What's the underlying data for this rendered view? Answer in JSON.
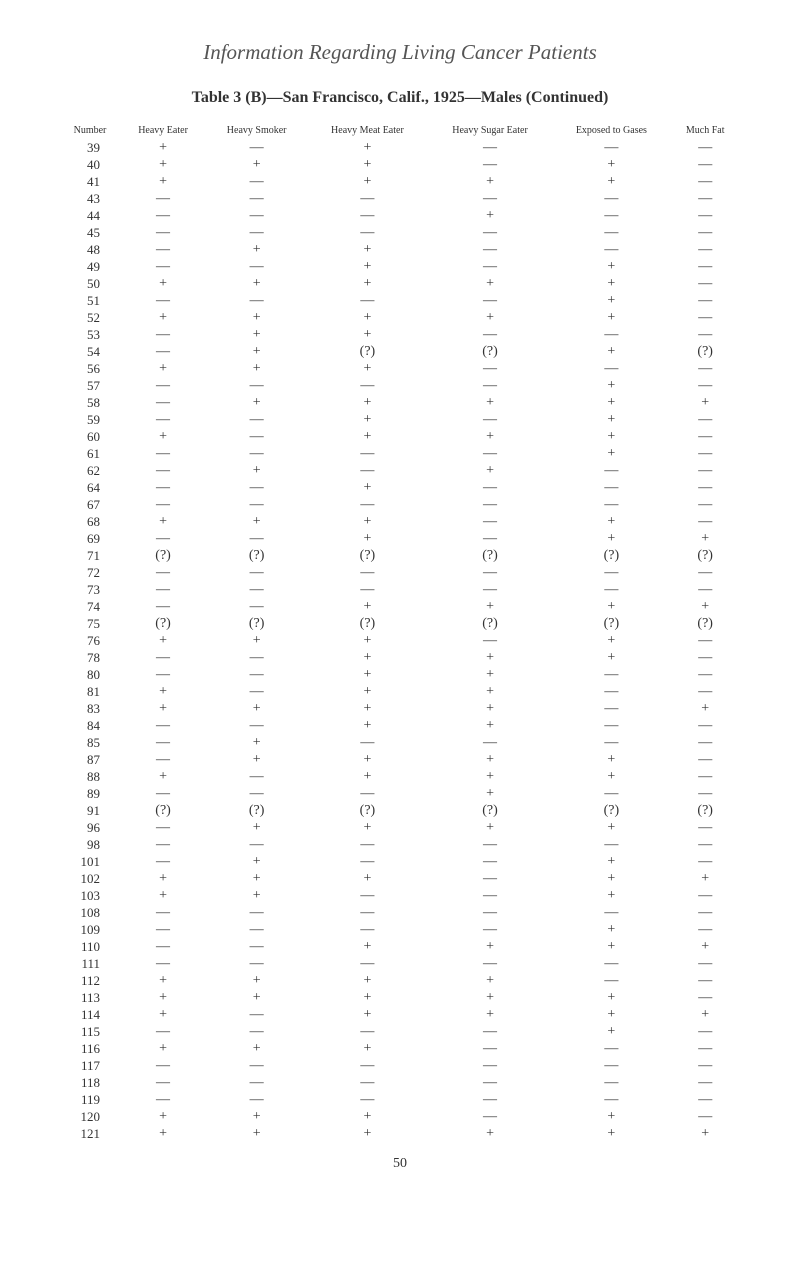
{
  "title": "Information Regarding Living Cancer Patients",
  "subtitle": "Table 3 (B)—San Francisco, Calif., 1925—Males (Continued)",
  "headers": [
    "Number",
    "Heavy Eater",
    "Heavy Smoker",
    "Heavy Meat Eater",
    "Heavy Sugar Eater",
    "Exposed to Gases",
    "Much Fat"
  ],
  "rows": [
    {
      "n": "39",
      "c": [
        "+",
        "—",
        "+",
        "—",
        "—",
        "—"
      ]
    },
    {
      "n": "40",
      "c": [
        "+",
        "+",
        "+",
        "—",
        "+",
        "—"
      ]
    },
    {
      "n": "41",
      "c": [
        "+",
        "—",
        "+",
        "+",
        "+",
        "—"
      ]
    },
    {
      "n": "43",
      "c": [
        "—",
        "—",
        "—",
        "—",
        "—",
        "—"
      ]
    },
    {
      "n": "44",
      "c": [
        "—",
        "—",
        "—",
        "+",
        "—",
        "—"
      ]
    },
    {
      "n": "45",
      "c": [
        "—",
        "—",
        "—",
        "—",
        "—",
        "—"
      ]
    },
    {
      "n": "48",
      "c": [
        "—",
        "+",
        "+",
        "—",
        "—",
        "—"
      ]
    },
    {
      "n": "49",
      "c": [
        "—",
        "—",
        "+",
        "—",
        "+",
        "—"
      ]
    },
    {
      "n": "50",
      "c": [
        "+",
        "+",
        "+",
        "+",
        "+",
        "—"
      ]
    },
    {
      "n": "51",
      "c": [
        "—",
        "—",
        "—",
        "—",
        "+",
        "—"
      ]
    },
    {
      "n": "52",
      "c": [
        "+",
        "+",
        "+",
        "+",
        "+",
        "—"
      ]
    },
    {
      "n": "53",
      "c": [
        "—",
        "+",
        "+",
        "—",
        "—",
        "—"
      ]
    },
    {
      "n": "54",
      "c": [
        "—",
        "+",
        "(?)",
        "(?)",
        "+",
        "(?)"
      ]
    },
    {
      "n": "56",
      "c": [
        "+",
        "+",
        "+",
        "—",
        "—",
        "—"
      ]
    },
    {
      "n": "57",
      "c": [
        "—",
        "—",
        "—",
        "—",
        "+",
        "—"
      ]
    },
    {
      "n": "58",
      "c": [
        "—",
        "+",
        "+",
        "+",
        "+",
        "+"
      ]
    },
    {
      "n": "59",
      "c": [
        "—",
        "—",
        "+",
        "—",
        "+",
        "—"
      ]
    },
    {
      "n": "60",
      "c": [
        "+",
        "—",
        "+",
        "+",
        "+",
        "—"
      ]
    },
    {
      "n": "61",
      "c": [
        "—",
        "—",
        "—",
        "—",
        "+",
        "—"
      ]
    },
    {
      "n": "62",
      "c": [
        "—",
        "+",
        "—",
        "+",
        "—",
        "—"
      ]
    },
    {
      "n": "64",
      "c": [
        "—",
        "—",
        "+",
        "—",
        "—",
        "—"
      ]
    },
    {
      "n": "67",
      "c": [
        "—",
        "—",
        "—",
        "—",
        "—",
        "—"
      ]
    },
    {
      "n": "68",
      "c": [
        "+",
        "+",
        "+",
        "—",
        "+",
        "—"
      ]
    },
    {
      "n": "69",
      "c": [
        "—",
        "—",
        "+",
        "—",
        "+",
        "+"
      ]
    },
    {
      "n": "71",
      "c": [
        "(?)",
        "(?)",
        "(?)",
        "(?)",
        "(?)",
        "(?)"
      ]
    },
    {
      "n": "72",
      "c": [
        "—",
        "—",
        "—",
        "—",
        "—",
        "—"
      ]
    },
    {
      "n": "73",
      "c": [
        "—",
        "—",
        "—",
        "—",
        "—",
        "—"
      ]
    },
    {
      "n": "74",
      "c": [
        "—",
        "—",
        "+",
        "+",
        "+",
        "+"
      ]
    },
    {
      "n": "75",
      "c": [
        "(?)",
        "(?)",
        "(?)",
        "(?)",
        "(?)",
        "(?)"
      ]
    },
    {
      "n": "76",
      "c": [
        "+",
        "+",
        "+",
        "—",
        "+",
        "—"
      ]
    },
    {
      "n": "78",
      "c": [
        "—",
        "—",
        "+",
        "+",
        "+",
        "—"
      ]
    },
    {
      "n": "80",
      "c": [
        "—",
        "—",
        "+",
        "+",
        "—",
        "—"
      ]
    },
    {
      "n": "81",
      "c": [
        "+",
        "—",
        "+",
        "+",
        "—",
        "—"
      ]
    },
    {
      "n": "83",
      "c": [
        "+",
        "+",
        "+",
        "+",
        "—",
        "+"
      ]
    },
    {
      "n": "84",
      "c": [
        "—",
        "—",
        "+",
        "+",
        "—",
        "—"
      ]
    },
    {
      "n": "85",
      "c": [
        "—",
        "+",
        "—",
        "—",
        "—",
        "—"
      ]
    },
    {
      "n": "87",
      "c": [
        "—",
        "+",
        "+",
        "+",
        "+",
        "—"
      ]
    },
    {
      "n": "88",
      "c": [
        "+",
        "—",
        "+",
        "+",
        "+",
        "—"
      ]
    },
    {
      "n": "89",
      "c": [
        "—",
        "—",
        "—",
        "+",
        "—",
        "—"
      ]
    },
    {
      "n": "91",
      "c": [
        "(?)",
        "(?)",
        "(?)",
        "(?)",
        "(?)",
        "(?)"
      ]
    },
    {
      "n": "96",
      "c": [
        "—",
        "+",
        "+",
        "+",
        "+",
        "—"
      ]
    },
    {
      "n": "98",
      "c": [
        "—",
        "—",
        "—",
        "—",
        "—",
        "—"
      ]
    },
    {
      "n": "101",
      "c": [
        "—",
        "+",
        "—",
        "—",
        "+",
        "—"
      ]
    },
    {
      "n": "102",
      "c": [
        "+",
        "+",
        "+",
        "—",
        "+",
        "+"
      ]
    },
    {
      "n": "103",
      "c": [
        "+",
        "+",
        "—",
        "—",
        "+",
        "—"
      ]
    },
    {
      "n": "108",
      "c": [
        "—",
        "—",
        "—",
        "—",
        "—",
        "—"
      ]
    },
    {
      "n": "109",
      "c": [
        "—",
        "—",
        "—",
        "—",
        "+",
        "—"
      ]
    },
    {
      "n": "110",
      "c": [
        "—",
        "—",
        "+",
        "+",
        "+",
        "+"
      ]
    },
    {
      "n": "111",
      "c": [
        "—",
        "—",
        "—",
        "—",
        "—",
        "—"
      ]
    },
    {
      "n": "112",
      "c": [
        "+",
        "+",
        "+",
        "+",
        "—",
        "—"
      ]
    },
    {
      "n": "113",
      "c": [
        "+",
        "+",
        "+",
        "+",
        "+",
        "—"
      ]
    },
    {
      "n": "114",
      "c": [
        "+",
        "—",
        "+",
        "+",
        "+",
        "+"
      ]
    },
    {
      "n": "115",
      "c": [
        "—",
        "—",
        "—",
        "—",
        "+",
        "—"
      ]
    },
    {
      "n": "116",
      "c": [
        "+",
        "+",
        "+",
        "—",
        "—",
        "—"
      ]
    },
    {
      "n": "117",
      "c": [
        "—",
        "—",
        "—",
        "—",
        "—",
        "—"
      ]
    },
    {
      "n": "118",
      "c": [
        "—",
        "—",
        "—",
        "—",
        "—",
        "—"
      ]
    },
    {
      "n": "119",
      "c": [
        "—",
        "—",
        "—",
        "—",
        "—",
        "—"
      ]
    },
    {
      "n": "120",
      "c": [
        "+",
        "+",
        "+",
        "—",
        "+",
        "—"
      ]
    },
    {
      "n": "121",
      "c": [
        "+",
        "+",
        "+",
        "+",
        "+",
        "+"
      ]
    }
  ],
  "page_number": "50"
}
